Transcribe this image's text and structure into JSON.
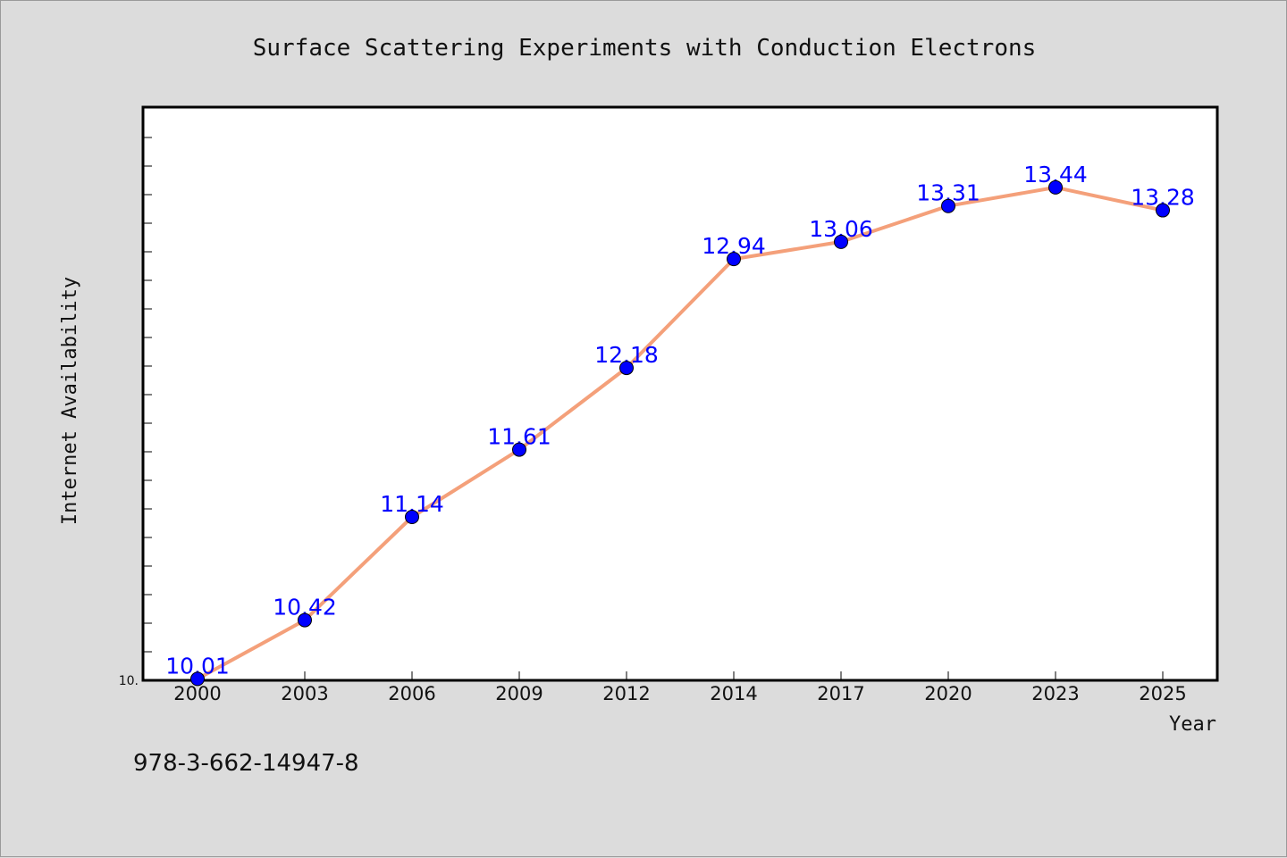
{
  "chart_data": {
    "type": "line",
    "title": "Surface Scattering Experiments with Conduction Electrons",
    "xlabel": "Year",
    "ylabel": "Internet Availability",
    "categories": [
      "2000",
      "2003",
      "2006",
      "2009",
      "2012",
      "2014",
      "2017",
      "2020",
      "2023",
      "2025"
    ],
    "series": [
      {
        "values": [
          10.01,
          10.42,
          11.14,
          11.61,
          12.18,
          12.94,
          13.06,
          13.31,
          13.44,
          13.28
        ],
        "labels": [
          "10.01",
          "10.42",
          "11.14",
          "11.61",
          "12.18",
          "12.94",
          "13.06",
          "13.31",
          "13.44",
          "13.28"
        ],
        "line_color": "#f4a07a",
        "marker_color": "#0000ff"
      }
    ],
    "ylim": [
      10.0,
      14.0
    ],
    "y_tick_labels": [
      "10."
    ],
    "grid": false,
    "legend": "none"
  },
  "footer": {
    "isbn": "978-3-662-14947-8"
  },
  "colors": {
    "background": "#dcdcdc",
    "plot_bg": "#ffffff",
    "line": "#f4a07a",
    "marker": "#0000ff",
    "label": "#0000ff"
  }
}
